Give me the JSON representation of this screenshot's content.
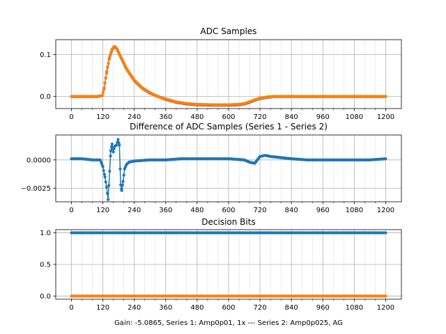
{
  "chart_data": [
    {
      "type": "scatter",
      "title": "ADC Samples",
      "xlim": [
        -60,
        1260
      ],
      "ylim": [
        -0.029,
        0.136
      ],
      "x_major_ticks": [
        0,
        120,
        240,
        360,
        480,
        600,
        720,
        840,
        960,
        1080,
        1200
      ],
      "x_minor_step": 40,
      "y_ticks": [
        0.0,
        0.1
      ],
      "y_tick_labels": [
        "0.0",
        "0.1"
      ],
      "grid": true,
      "series": [
        {
          "color": "#555555",
          "marker": "dot",
          "line": true,
          "points": [
            [
              0,
              0
            ],
            [
              100,
              0
            ],
            [
              118,
              0.002
            ],
            [
              125,
              0.02
            ],
            [
              135,
              0.06
            ],
            [
              145,
              0.092
            ],
            [
              155,
              0.112
            ],
            [
              162,
              0.118
            ],
            [
              168,
              0.118
            ],
            [
              175,
              0.112
            ],
            [
              190,
              0.092
            ],
            [
              210,
              0.066
            ],
            [
              240,
              0.038
            ],
            [
              270,
              0.02
            ],
            [
              300,
              0.008
            ],
            [
              330,
              0.0
            ],
            [
              360,
              -0.007
            ],
            [
              400,
              -0.014
            ],
            [
              440,
              -0.018
            ],
            [
              480,
              -0.02
            ],
            [
              540,
              -0.021
            ],
            [
              600,
              -0.021
            ],
            [
              640,
              -0.02
            ],
            [
              660,
              -0.018
            ],
            [
              680,
              -0.014
            ],
            [
              700,
              -0.009
            ],
            [
              720,
              -0.005
            ],
            [
              750,
              -0.002
            ],
            [
              780,
              0.0
            ],
            [
              840,
              0.0
            ],
            [
              960,
              0.0
            ],
            [
              1080,
              0.0
            ],
            [
              1200,
              0.0
            ]
          ]
        },
        {
          "color": "#ff7f0e",
          "marker": "dot",
          "line": true,
          "points": [
            [
              0,
              0
            ],
            [
              100,
              0
            ],
            [
              118,
              0.002
            ],
            [
              125,
              0.021
            ],
            [
              135,
              0.061
            ],
            [
              145,
              0.093
            ],
            [
              155,
              0.113
            ],
            [
              162,
              0.119
            ],
            [
              168,
              0.119
            ],
            [
              175,
              0.113
            ],
            [
              190,
              0.093
            ],
            [
              210,
              0.067
            ],
            [
              240,
              0.039
            ],
            [
              270,
              0.021
            ],
            [
              300,
              0.009
            ],
            [
              330,
              0.0
            ],
            [
              360,
              -0.006
            ],
            [
              400,
              -0.013
            ],
            [
              440,
              -0.017
            ],
            [
              480,
              -0.019
            ],
            [
              540,
              -0.02
            ],
            [
              600,
              -0.02
            ],
            [
              640,
              -0.019
            ],
            [
              660,
              -0.017
            ],
            [
              680,
              -0.013
            ],
            [
              700,
              -0.008
            ],
            [
              720,
              -0.004
            ],
            [
              750,
              -0.001
            ],
            [
              780,
              0.0
            ],
            [
              840,
              0.0
            ],
            [
              960,
              0.0
            ],
            [
              1080,
              0.0
            ],
            [
              1200,
              0.0
            ]
          ]
        }
      ]
    },
    {
      "type": "line",
      "title": "Difference of ADC Samples (Series 1 - Series 2)",
      "xlim": [
        -60,
        1260
      ],
      "ylim": [
        -0.0037,
        0.0022
      ],
      "x_major_ticks": [
        0,
        120,
        240,
        360,
        480,
        600,
        720,
        840,
        960,
        1080,
        1200
      ],
      "x_minor_step": 40,
      "y_ticks": [
        -0.0025,
        0.0
      ],
      "y_tick_labels": [
        "−0.0025",
        "0.0000"
      ],
      "grid": true,
      "series": [
        {
          "color": "#1f77b4",
          "marker": "dot",
          "line": true,
          "points": [
            [
              0,
              0.0001
            ],
            [
              40,
              0.0001
            ],
            [
              80,
              0.0
            ],
            [
              110,
              0.0
            ],
            [
              120,
              -0.0006
            ],
            [
              128,
              -0.0015
            ],
            [
              134,
              -0.0024
            ],
            [
              140,
              -0.0035
            ],
            [
              146,
              -0.001
            ],
            [
              150,
              0.0008
            ],
            [
              155,
              0.0014
            ],
            [
              160,
              0.0007
            ],
            [
              165,
              0.0012
            ],
            [
              172,
              0.0013
            ],
            [
              178,
              0.0018
            ],
            [
              183,
              0.0013
            ],
            [
              188,
              -0.0022
            ],
            [
              192,
              -0.0027
            ],
            [
              197,
              -0.0019
            ],
            [
              203,
              -0.0008
            ],
            [
              210,
              -0.0004
            ],
            [
              220,
              -0.0002
            ],
            [
              240,
              -0.0001
            ],
            [
              300,
              0.0
            ],
            [
              360,
              0.0
            ],
            [
              420,
              0.0001
            ],
            [
              480,
              0.0001
            ],
            [
              540,
              0.0001
            ],
            [
              600,
              0.0001
            ],
            [
              660,
              0.0
            ],
            [
              680,
              -0.0002
            ],
            [
              700,
              -0.0003
            ],
            [
              720,
              0.0003
            ],
            [
              740,
              0.0004
            ],
            [
              760,
              0.0003
            ],
            [
              800,
              0.0002
            ],
            [
              840,
              0.0001
            ],
            [
              900,
              0.0
            ],
            [
              960,
              0.0
            ],
            [
              1020,
              0.0
            ],
            [
              1080,
              0.0
            ],
            [
              1140,
              0.0
            ],
            [
              1200,
              0.0001
            ]
          ]
        }
      ]
    },
    {
      "type": "scatter",
      "title": "Decision Bits",
      "xlim": [
        -60,
        1260
      ],
      "ylim": [
        -0.05,
        1.05
      ],
      "x_major_ticks": [
        0,
        120,
        240,
        360,
        480,
        600,
        720,
        840,
        960,
        1080,
        1200
      ],
      "x_minor_step": 40,
      "y_ticks": [
        0.0,
        0.5,
        1.0
      ],
      "y_tick_labels": [
        "0.0",
        "0.5",
        "1.0"
      ],
      "grid": true,
      "series": [
        {
          "color": "#1f77b4",
          "marker": "dot",
          "line": true,
          "points": [
            [
              0,
              1
            ],
            [
              1200,
              1
            ]
          ]
        },
        {
          "color": "#ff7f0e",
          "marker": "dot",
          "line": true,
          "points": [
            [
              0,
              0
            ],
            [
              1200,
              0
            ]
          ]
        }
      ]
    }
  ],
  "footer": {
    "text": "Gain: -5.0865, Series 1: Amp0p01, 1x --- Series 2: Amp0p025, AG"
  }
}
